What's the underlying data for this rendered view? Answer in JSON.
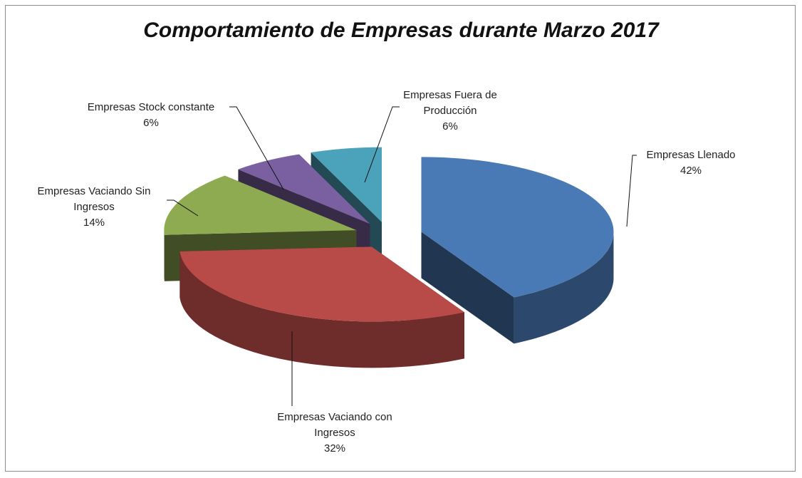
{
  "chart_data": {
    "type": "pie3d",
    "title": "Comportamiento de Empresas durante Marzo 2017",
    "categories": [
      "Empresas Llenado",
      "Empresas Vaciando con Ingresos",
      "Empresas Vaciando Sin Ingresos",
      "Empresas Stock constante",
      "Empresas Fuera de Producción"
    ],
    "values": [
      42,
      32,
      14,
      6,
      6
    ],
    "value_labels": [
      "42%",
      "32%",
      "14%",
      "6%",
      "6%"
    ],
    "colors": [
      "#4a7ab5",
      "#b84a47",
      "#8fab52",
      "#7a60a0",
      "#4ba3bb"
    ]
  }
}
